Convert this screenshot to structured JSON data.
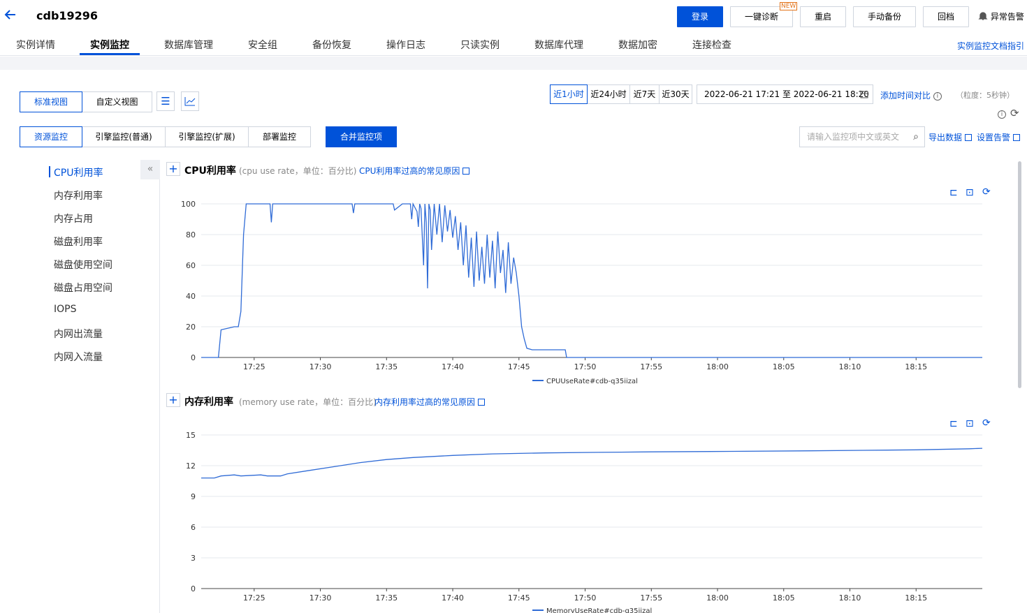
{
  "header": {
    "title": "cdb19296",
    "buttons": {
      "login": "登录",
      "diagnose": "一键诊断",
      "restart": "重启",
      "backup": "手动备份",
      "rollback": "回档"
    },
    "new_tag": "NEW",
    "alarm": "异常告警"
  },
  "tabs": [
    "实例详情",
    "实例监控",
    "数据库管理",
    "安全组",
    "备份恢复",
    "操作日志",
    "只读实例",
    "数据库代理",
    "数据加密",
    "连接检查"
  ],
  "doc_link": "实例监控文档指引",
  "views": {
    "standard": "标准视图",
    "custom": "自定义视图"
  },
  "time": {
    "presets": [
      "近1小时",
      "近24小时",
      "近7天",
      "近30天"
    ],
    "range": "2022-06-21 17:21 至 2022-06-21 18:20",
    "compare": "添加时间对比",
    "granularity": "（粒度：5秒钟）"
  },
  "monitor_tabs": [
    "资源监控",
    "引擎监控(普通)",
    "引擎监控(扩展)",
    "部署监控"
  ],
  "merge_button": "合并监控项",
  "search_placeholder": "请输入监控项中文或英文",
  "export": "导出数据",
  "set_alarm": "设置告警",
  "sidebar": [
    "CPU利用率",
    "内存利用率",
    "内存占用",
    "磁盘利用率",
    "磁盘使用空间",
    "磁盘占用空间",
    "IOPS",
    "内网出流量",
    "内网入流量"
  ],
  "charts": {
    "cpu": {
      "title": "CPU利用率",
      "subtitle": "(cpu use rate，单位：百分比)",
      "link": "CPU利用率过高的常见原因"
    },
    "mem": {
      "title": "内存利用率",
      "subtitle": "(memory use rate，单位：百分比)",
      "link": "内存利用率过高的常见原因"
    }
  },
  "icons": {
    "back": "arrow-left-icon",
    "bell": "bell-icon",
    "calendar": "calendar-icon",
    "info": "info-icon",
    "refresh": "refresh-icon",
    "search": "search-icon",
    "list": "list-view-icon",
    "chart": "chart-view-icon"
  },
  "colors": {
    "accent": "#0052d9",
    "line": "#2f6bd6"
  },
  "chart_data": [
    {
      "type": "line",
      "ylim": [
        0,
        100
      ],
      "yticks": [
        0,
        20,
        40,
        60,
        80,
        100
      ],
      "xticks": [
        "17:25",
        "17:30",
        "17:35",
        "17:40",
        "17:45",
        "17:50",
        "17:55",
        "18:00",
        "18:05",
        "18:10",
        "18:15"
      ],
      "xrange": [
        "17:21",
        "18:20"
      ],
      "series": [
        {
          "name": "CPUUseRate#cdb-q35iizal",
          "x_minutes_after_1721": [
            0,
            1.3,
            1.5,
            2.5,
            2.8,
            3.0,
            3.2,
            3.4,
            5.2,
            5.3,
            5.4,
            11.4,
            11.5,
            11.6,
            14.5,
            14.6,
            15.2,
            15.8,
            15.9,
            16.0,
            16.3,
            16.4,
            16.5,
            16.6,
            16.8,
            16.9,
            17.0,
            17.1,
            17.2,
            17.3,
            17.4,
            17.6,
            17.8,
            18.0,
            18.2,
            18.4,
            18.6,
            18.8,
            19.0,
            19.2,
            19.4,
            19.6,
            19.8,
            20.0,
            20.2,
            20.4,
            20.6,
            20.8,
            21.0,
            21.2,
            21.4,
            21.6,
            21.8,
            22.0,
            22.2,
            22.4,
            22.6,
            22.8,
            23.0,
            23.2,
            23.4,
            23.6,
            23.8,
            24.0,
            24.2,
            24.4,
            24.6,
            25.0,
            25.5,
            26.0,
            27.0,
            27.5,
            27.6,
            59
          ],
          "y": [
            0,
            0,
            18,
            20,
            20,
            30,
            80,
            100,
            100,
            88,
            100,
            100,
            94,
            100,
            100,
            96,
            100,
            100,
            90,
            100,
            95,
            85,
            100,
            97,
            60,
            100,
            88,
            45,
            100,
            96,
            70,
            100,
            80,
            100,
            75,
            99,
            82,
            96,
            78,
            92,
            70,
            88,
            60,
            86,
            52,
            78,
            46,
            82,
            50,
            72,
            48,
            80,
            52,
            76,
            45,
            82,
            55,
            70,
            42,
            75,
            48,
            65,
            55,
            40,
            20,
            12,
            6,
            5,
            5,
            5,
            5,
            5,
            0,
            0
          ]
        }
      ]
    },
    {
      "type": "line",
      "ylim": [
        0,
        15
      ],
      "yticks": [
        0,
        3,
        6,
        9,
        12,
        15
      ],
      "xticks": [
        "17:25",
        "17:30",
        "17:35",
        "17:40",
        "17:45",
        "17:50",
        "17:55",
        "18:00",
        "18:05",
        "18:10",
        "18:15"
      ],
      "xrange": [
        "17:21",
        "18:20"
      ],
      "series": [
        {
          "name": "MemoryUseRate#cdb-q35iizal",
          "x_minutes_after_1721": [
            0,
            1,
            1.5,
            2.5,
            3,
            4.5,
            5,
            6,
            6.5,
            8,
            10,
            12,
            14,
            16,
            19,
            22,
            26,
            30,
            34,
            40,
            46,
            50,
            54,
            58,
            59
          ],
          "y": [
            10.8,
            10.8,
            11.0,
            11.1,
            11.0,
            11.1,
            11.0,
            11.0,
            11.2,
            11.5,
            11.9,
            12.3,
            12.6,
            12.8,
            13.0,
            13.15,
            13.25,
            13.3,
            13.35,
            13.4,
            13.45,
            13.5,
            13.55,
            13.65,
            13.7
          ]
        }
      ]
    }
  ]
}
